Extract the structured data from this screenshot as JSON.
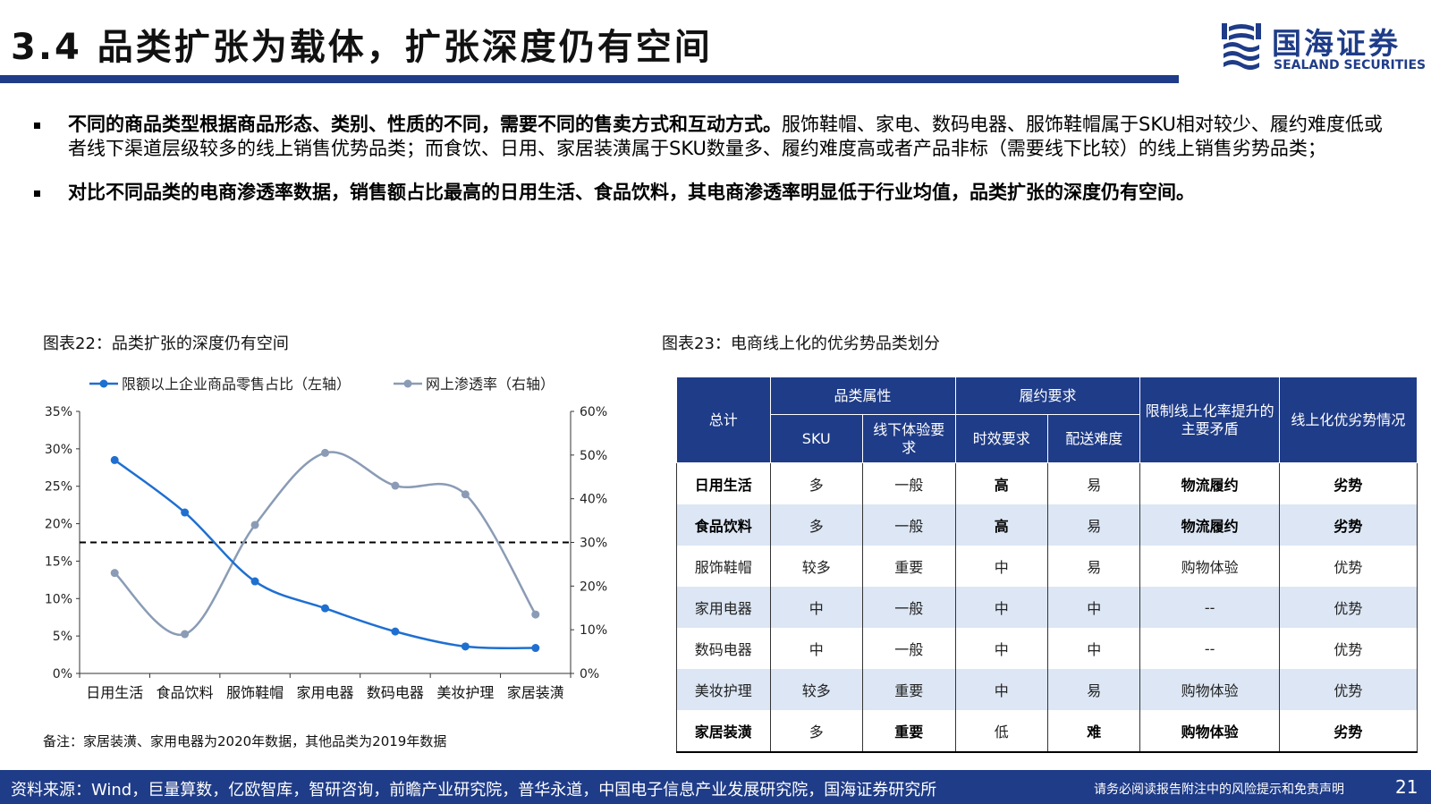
{
  "header": {
    "title": "3.4 品类扩张为载体，扩张深度仍有空间",
    "logo_cn": "国海证券",
    "logo_en": "SEALAND SECURITIES",
    "brand_color": "#1f3c88"
  },
  "bullets": [
    {
      "bold": "不同的商品类型根据商品形态、类别、性质的不同，需要不同的售卖方式和互动方式。",
      "text": "服饰鞋帽、家电、数码电器、服饰鞋帽属于SKU相对较少、履约难度低或者线下渠道层级较多的线上销售优势品类；而食饮、日用、家居装潢属于SKU数量多、履约难度高或者产品非标（需要线下比较）的线上销售劣势品类；"
    },
    {
      "bold": "对比不同品类的电商渗透率数据，销售额占比最高的日用生活、食品饮料，其电商渗透率明显低于行业均值，品类扩张的深度仍有空间。",
      "text": ""
    }
  ],
  "figure22": {
    "title": "图表22：品类扩张的深度仍有空间",
    "note": "备注：家居装潢、家用电器为2020年数据，其他品类为2019年数据"
  },
  "chart_data": {
    "type": "line",
    "categories": [
      "日用生活",
      "食品饮料",
      "服饰鞋帽",
      "家用电器",
      "数码电器",
      "美妆护理",
      "家居装潢"
    ],
    "series": [
      {
        "name": "限额以上企业商品零售占比（左轴）",
        "axis": "left",
        "color": "#1f6fd1",
        "values": [
          28.5,
          21.5,
          12.3,
          8.7,
          5.6,
          3.6,
          3.4
        ]
      },
      {
        "name": "网上渗透率（右轴）",
        "axis": "right",
        "color": "#8a9bb5",
        "values": [
          23,
          9,
          34,
          50.5,
          43,
          41,
          13.5
        ]
      }
    ],
    "y_left": {
      "min": 0,
      "max": 35,
      "ticks": [
        "0%",
        "5%",
        "10%",
        "15%",
        "20%",
        "25%",
        "30%",
        "35%"
      ]
    },
    "y_right": {
      "min": 0,
      "max": 60,
      "ticks": [
        "0%",
        "10%",
        "20%",
        "30%",
        "40%",
        "50%",
        "60%"
      ]
    },
    "reference_line": {
      "axis": "right",
      "value": 30,
      "style": "dashed"
    },
    "legend_position": "top",
    "grid": false
  },
  "figure23": {
    "title": "图表23：电商线上化的优劣势品类划分",
    "headers": {
      "total": "总计",
      "attr": "品类属性",
      "fulfil": "履约要求",
      "contradiction": "限制线上化率提升的主要矛盾",
      "advantage": "线上化优劣势情况",
      "sku": "SKU",
      "offline": "线下体验要求",
      "timeliness": "时效要求",
      "delivery": "配送难度"
    },
    "rows": [
      {
        "cells": [
          "日用生活",
          "多",
          "一般",
          "高",
          "易",
          "物流履约",
          "劣势"
        ],
        "bold": [
          1,
          0,
          0,
          1,
          0,
          1,
          1
        ]
      },
      {
        "cells": [
          "食品饮料",
          "多",
          "一般",
          "高",
          "易",
          "物流履约",
          "劣势"
        ],
        "bold": [
          1,
          0,
          0,
          1,
          0,
          1,
          1
        ]
      },
      {
        "cells": [
          "服饰鞋帽",
          "较多",
          "重要",
          "中",
          "易",
          "购物体验",
          "优势"
        ],
        "bold": [
          0,
          0,
          0,
          0,
          0,
          0,
          0
        ]
      },
      {
        "cells": [
          "家用电器",
          "中",
          "一般",
          "中",
          "中",
          "--",
          "优势"
        ],
        "bold": [
          0,
          0,
          0,
          0,
          0,
          0,
          0
        ]
      },
      {
        "cells": [
          "数码电器",
          "中",
          "一般",
          "中",
          "中",
          "--",
          "优势"
        ],
        "bold": [
          0,
          0,
          0,
          0,
          0,
          0,
          0
        ]
      },
      {
        "cells": [
          "美妆护理",
          "较多",
          "重要",
          "中",
          "易",
          "购物体验",
          "优势"
        ],
        "bold": [
          0,
          0,
          0,
          0,
          0,
          0,
          0
        ]
      },
      {
        "cells": [
          "家居装潢",
          "多",
          "重要",
          "低",
          "难",
          "购物体验",
          "劣势"
        ],
        "bold": [
          1,
          0,
          1,
          0,
          1,
          1,
          1
        ]
      }
    ]
  },
  "footer": {
    "source": "资料来源：Wind，巨量算数，亿欧智库，智研咨询，前瞻产业研究院，普华永道，中国电子信息产业发展研究院，国海证券研究所",
    "disclaimer": "请务必阅读报告附注中的风险提示和免责声明",
    "page": "21"
  }
}
